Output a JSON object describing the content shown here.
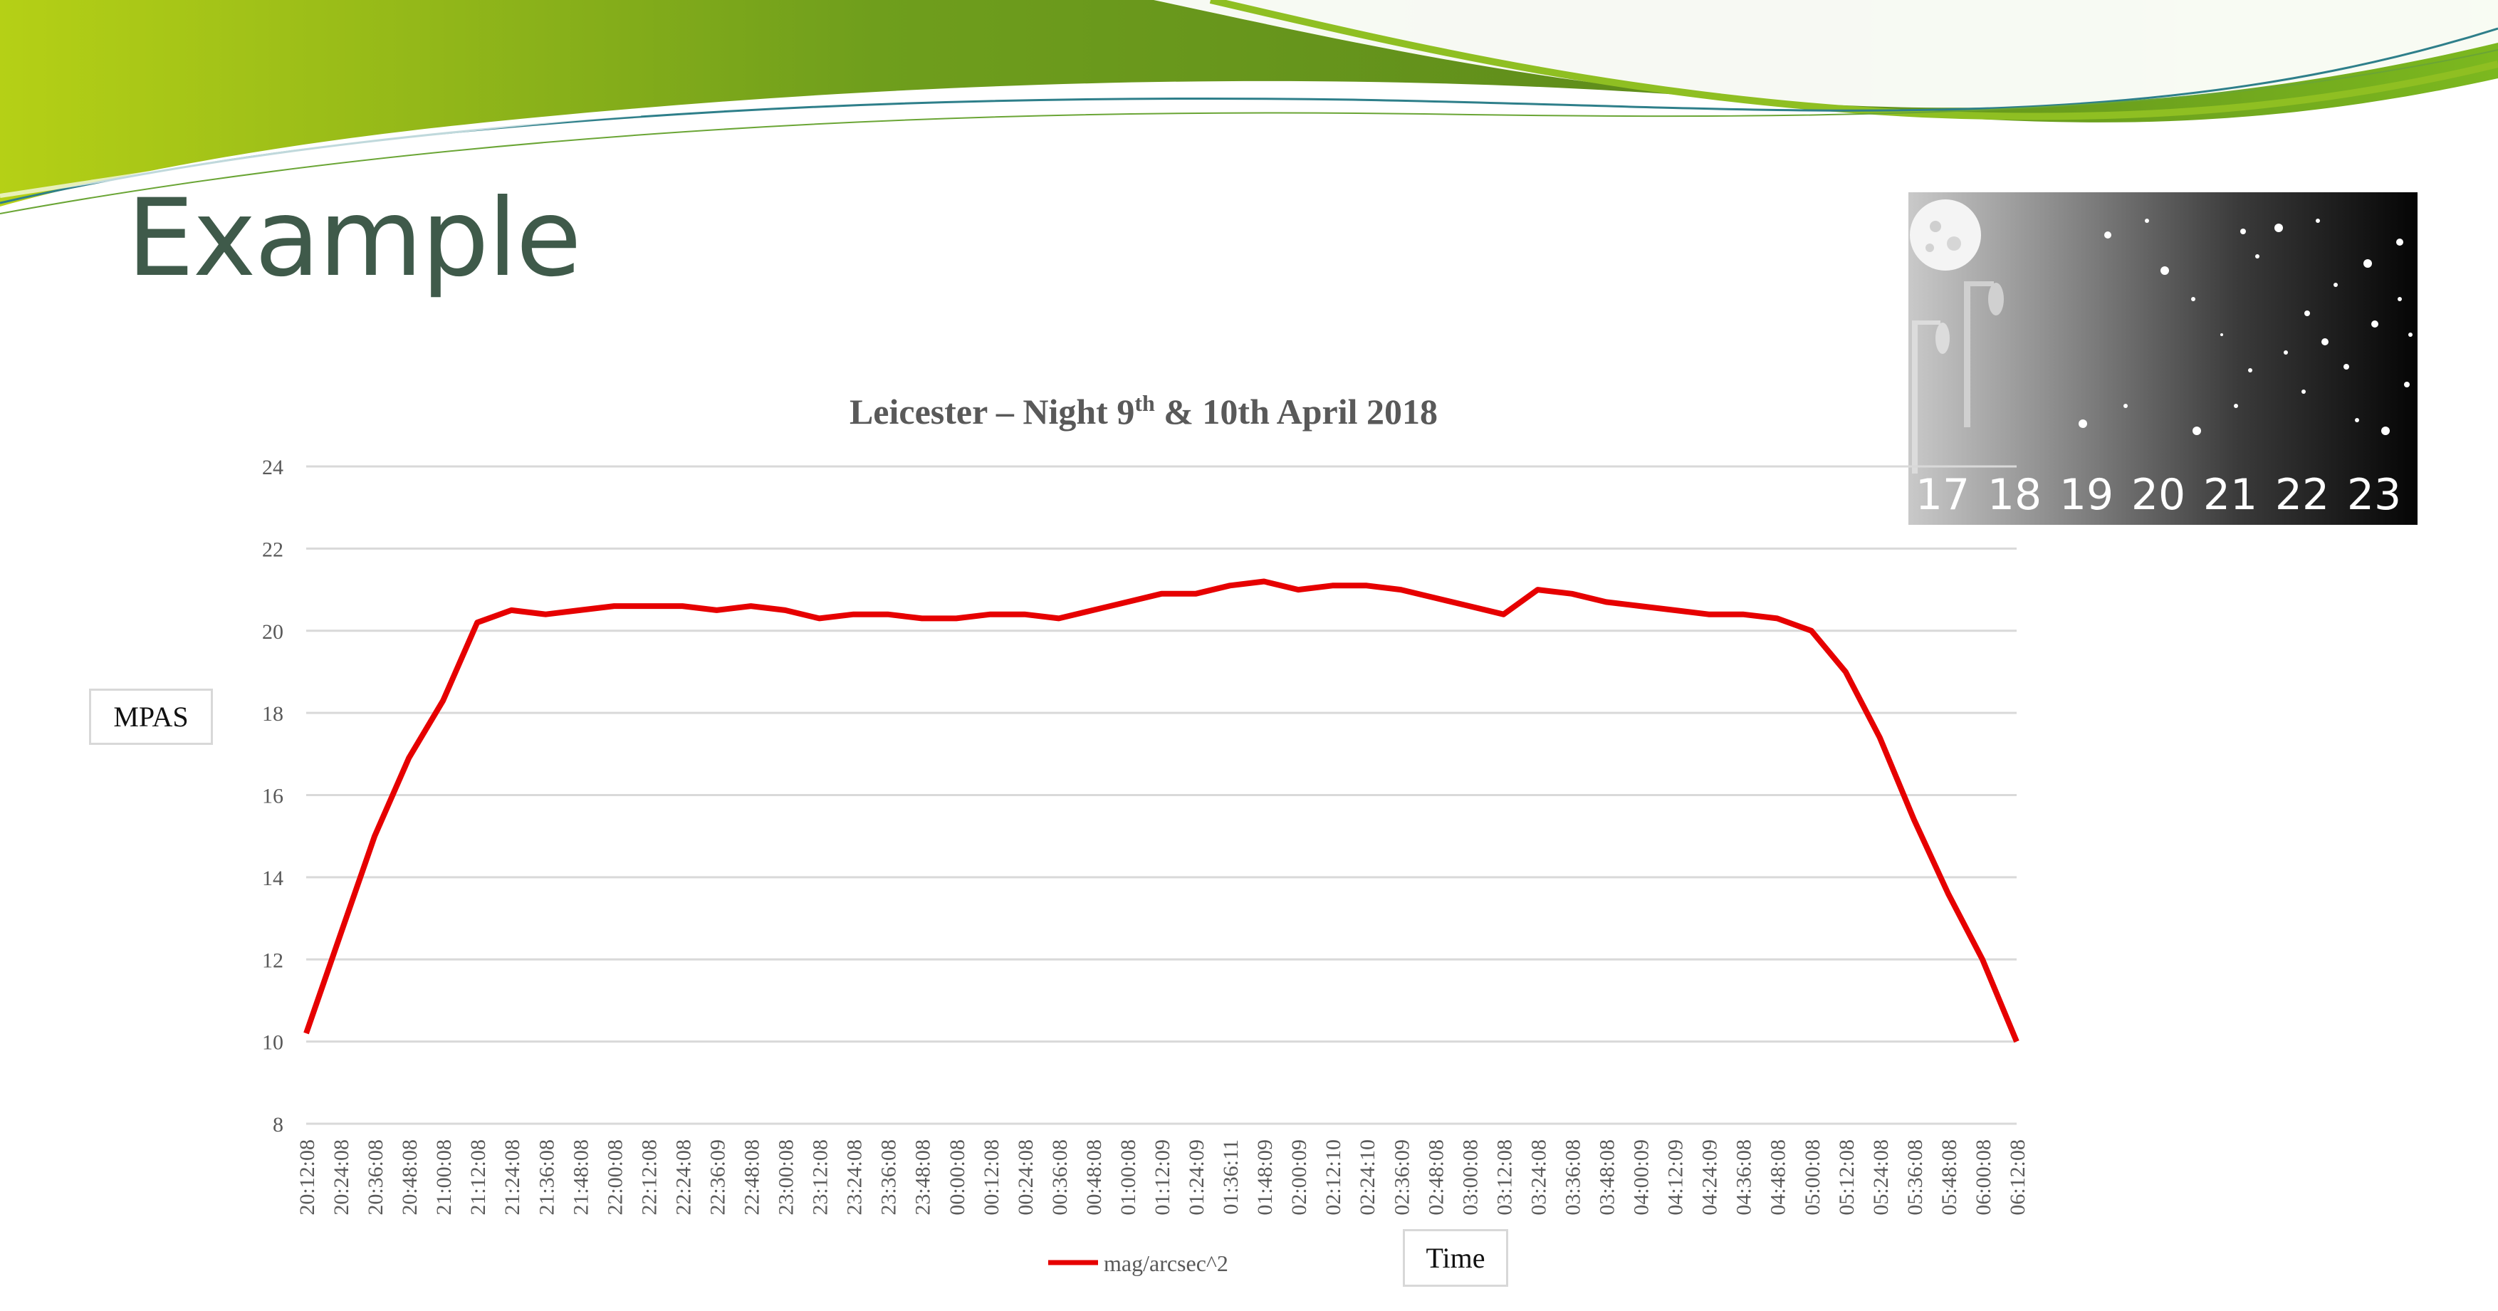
{
  "slide": {
    "title": "Example"
  },
  "colors": {
    "series": "#e60000",
    "title": "#3f5a4a",
    "gridline": "#d9d9d9",
    "banner_dark": "#5b8a1e",
    "banner_light": "#c6da1a"
  },
  "sky_scale": {
    "numbers": [
      "17",
      "18",
      "19",
      "20",
      "21",
      "22",
      "23"
    ]
  },
  "chart_data": {
    "type": "line",
    "title": "Leicester – Night 9",
    "title_sup": "th",
    "title_rest": " & 10th April 2018",
    "xlabel": "Time",
    "ylabel": "MPAS",
    "ylim": [
      8,
      24
    ],
    "yticks": [
      8,
      10,
      12,
      14,
      16,
      18,
      20,
      22,
      24
    ],
    "grid": true,
    "legend_position": "bottom",
    "x": [
      "20:12:08",
      "20:24:08",
      "20:36:08",
      "20:48:08",
      "21:00:08",
      "21:12:08",
      "21:24:08",
      "21:36:08",
      "21:48:08",
      "22:00:08",
      "22:12:08",
      "22:24:08",
      "22:36:09",
      "22:48:08",
      "23:00:08",
      "23:12:08",
      "23:24:08",
      "23:36:08",
      "23:48:08",
      "00:00:08",
      "00:12:08",
      "00:24:08",
      "00:36:08",
      "00:48:08",
      "01:00:08",
      "01:12:09",
      "01:24:09",
      "01:36:11",
      "01:48:09",
      "02:00:09",
      "02:12:10",
      "02:24:10",
      "02:36:09",
      "02:48:08",
      "03:00:08",
      "03:12:08",
      "03:24:08",
      "03:36:08",
      "03:48:08",
      "04:00:09",
      "04:12:09",
      "04:24:09",
      "04:36:08",
      "04:48:08",
      "05:00:08",
      "05:12:08",
      "05:24:08",
      "05:36:08",
      "05:48:08",
      "06:00:08",
      "06:12:08"
    ],
    "series": [
      {
        "name": "mag/arcsec^2",
        "values": [
          10.2,
          12.6,
          15.0,
          16.9,
          18.3,
          20.2,
          20.5,
          20.4,
          20.5,
          20.6,
          20.6,
          20.6,
          20.5,
          20.6,
          20.5,
          20.3,
          20.4,
          20.4,
          20.3,
          20.3,
          20.4,
          20.4,
          20.3,
          20.5,
          20.7,
          20.9,
          20.9,
          21.1,
          21.2,
          21.0,
          21.1,
          21.1,
          21.0,
          20.8,
          20.6,
          20.4,
          21.0,
          20.9,
          20.7,
          20.6,
          20.5,
          20.4,
          20.4,
          20.3,
          20.0,
          19.0,
          17.4,
          15.4,
          13.6,
          12.0,
          10.0
        ]
      }
    ]
  }
}
